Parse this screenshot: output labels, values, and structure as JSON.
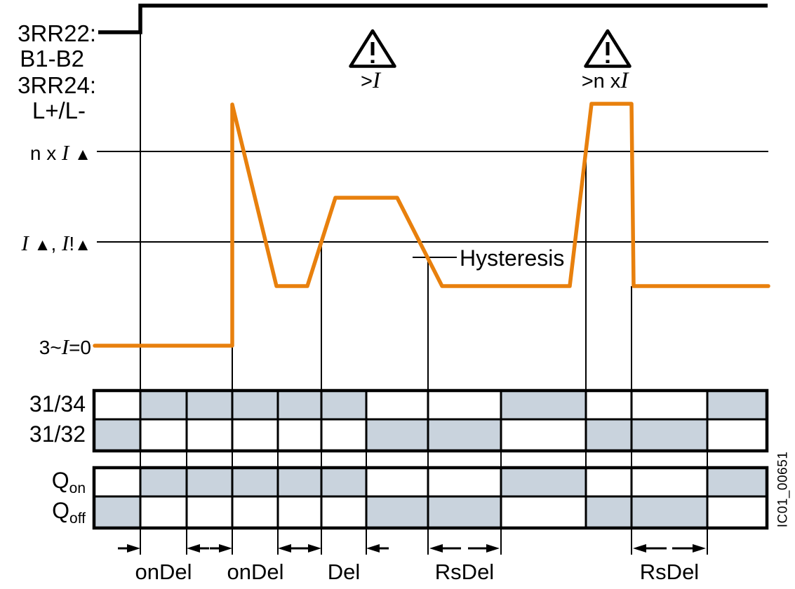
{
  "colors": {
    "orange": "#E8800D",
    "cell_fill": "#C9D3DD",
    "line": "#000000"
  },
  "source_labels": {
    "relay1": "3RR22:",
    "relay1_terminals": "B1-B2",
    "relay2": "3RR24:",
    "relay2_terminals": "L+/L-"
  },
  "levels": {
    "n_x_i": {
      "pre": "n x ",
      "i": "I",
      "post": " ",
      "tri": "▲"
    },
    "i_thresholds": {
      "i1": "I",
      "mid1": " ",
      "tri1": "▲",
      "mid2": ", ",
      "i2": "I",
      "mid3": "!",
      "tri2": "▲"
    },
    "zero": {
      "pre": "3~",
      "i": "I",
      "post": "=0"
    }
  },
  "warnings": {
    "over_i": {
      "pre": ">",
      "i": "I"
    },
    "over_n_x_i": {
      "pre": ">n x",
      "i": "I"
    }
  },
  "hysteresis_label": "Hysteresis",
  "watermark": "IC01_00651",
  "timing_table": {
    "bounds": [
      134,
      200,
      266,
      331,
      396,
      458,
      522,
      610,
      714,
      835,
      900,
      1008,
      1093
    ],
    "rows": [
      {
        "label": "31/34",
        "sub": "",
        "cells": [
          0,
          1,
          1,
          1,
          1,
          1,
          0,
          0,
          1,
          0,
          0,
          1
        ]
      },
      {
        "label": "31/32",
        "sub": "",
        "cells": [
          1,
          0,
          0,
          0,
          0,
          0,
          1,
          1,
          0,
          1,
          1,
          0
        ]
      },
      {
        "label": "Q",
        "sub": "on",
        "cells": [
          0,
          1,
          1,
          1,
          1,
          1,
          0,
          0,
          1,
          0,
          0,
          1
        ]
      },
      {
        "label": "Q",
        "sub": "off",
        "cells": [
          1,
          0,
          0,
          0,
          0,
          0,
          1,
          1,
          0,
          1,
          1,
          0
        ]
      }
    ]
  },
  "delays": [
    {
      "label": "onDel",
      "from": 200,
      "to": 266
    },
    {
      "label": "onDel",
      "from": 331,
      "to": 396
    },
    {
      "label": "Del",
      "from": 458,
      "to": 522
    },
    {
      "label": "RsDel",
      "from": 610,
      "to": 714
    },
    {
      "label": "RsDel",
      "from": 900,
      "to": 1008
    }
  ],
  "ticks": [
    200,
    266,
    331,
    396,
    458,
    522,
    610,
    714,
    900,
    1008
  ]
}
